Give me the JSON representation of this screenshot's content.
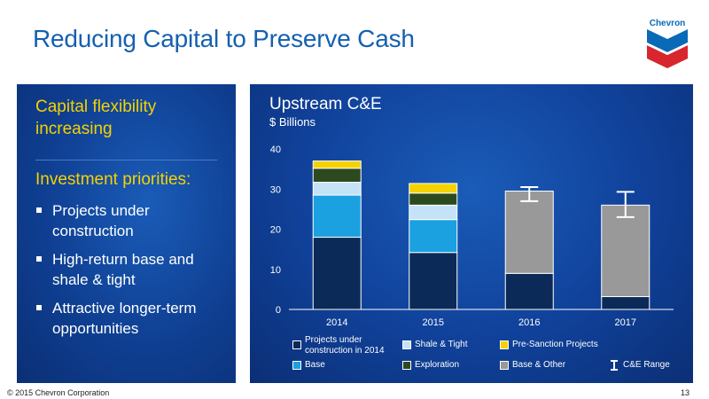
{
  "title": "Reducing Capital to Preserve Cash",
  "logo": {
    "text": "Chevron",
    "colors": {
      "red": "#d7262d",
      "blue": "#0a6ab8"
    }
  },
  "left_panel": {
    "heading": "Capital flexibility increasing",
    "subheading": "Investment priorities:",
    "bullets": [
      "Projects under construction",
      "High-return base and shale & tight",
      "Attractive longer-term opportunities"
    ]
  },
  "chart_data": {
    "type": "bar",
    "stacked": true,
    "title": "Upstream C&E",
    "subtitle": "$ Billions",
    "categories": [
      "2014",
      "2015",
      "2016",
      "2017"
    ],
    "ylim": [
      0,
      40
    ],
    "yticks": [
      0,
      10,
      20,
      30,
      40
    ],
    "series": [
      {
        "name": "Projects under construction in 2014",
        "color": "#0b2a57",
        "values": [
          18.0,
          14.2,
          9.0,
          3.2
        ]
      },
      {
        "name": "Base",
        "color": "#1ba0e0",
        "values": [
          10.5,
          8.2,
          0,
          0
        ]
      },
      {
        "name": "Shale & Tight",
        "color": "#c5e3f7",
        "values": [
          3.2,
          3.6,
          0,
          0
        ]
      },
      {
        "name": "Exploration",
        "color": "#2d4a1e",
        "values": [
          3.5,
          3.0,
          0,
          0
        ]
      },
      {
        "name": "Pre-Sanction Projects",
        "color": "#f5d200",
        "values": [
          1.8,
          2.4,
          0,
          0
        ]
      },
      {
        "name": "Base & Other",
        "color": "#999999",
        "values": [
          0,
          0,
          20.5,
          22.8
        ]
      }
    ],
    "ranges": [
      null,
      null,
      {
        "low": 27.0,
        "high": 30.5
      },
      {
        "low": 23.0,
        "high": 29.3
      }
    ],
    "range_label": "C&E Range",
    "legend": [
      {
        "label": "Projects under construction in 2014",
        "color": "#0b2a57"
      },
      {
        "label": "Shale & Tight",
        "color": "#c5e3f7"
      },
      {
        "label": "Pre-Sanction Projects",
        "color": "#f5d200"
      },
      {
        "label": "Base",
        "color": "#1ba0e0"
      },
      {
        "label": "Exploration",
        "color": "#2d4a1e"
      },
      {
        "label": "Base & Other",
        "color": "#999999"
      }
    ]
  },
  "footer": {
    "copyright": "© 2015 Chevron Corporation",
    "page": "13"
  }
}
